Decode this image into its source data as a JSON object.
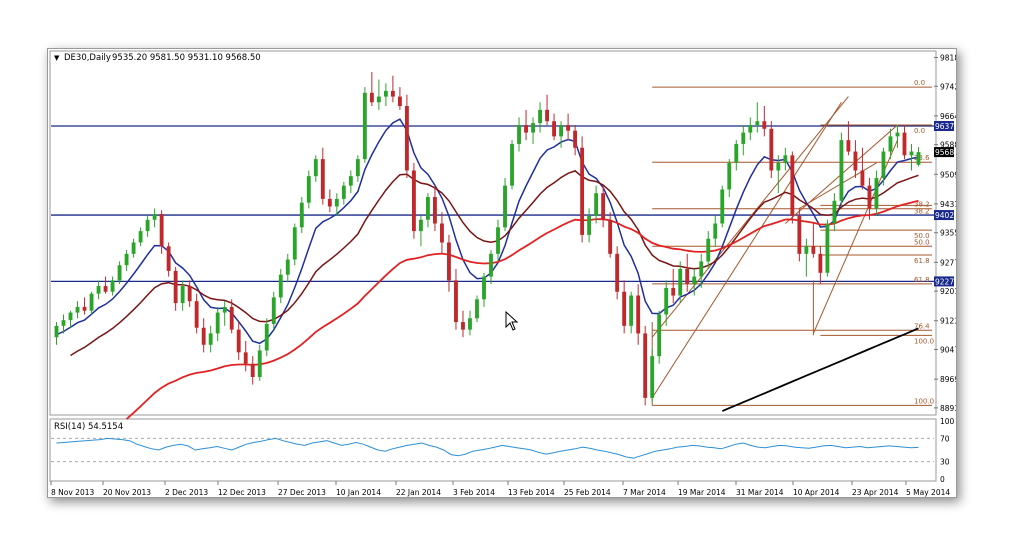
{
  "header": {
    "symbol": "DE30,Daily",
    "ohlc": "9535.20 9581.50 9531.10 9568.50"
  },
  "rsi_header": {
    "label": "RSI(14) 54.5154"
  },
  "colors": {
    "bull": "#2aa52a",
    "bear": "#c0282b",
    "hline": "#1a2a8c",
    "fib": "#a6572b",
    "ma_blue": "#1f2fa0",
    "ma_dark": "#7a1414",
    "ma_red": "#e22222",
    "ma_black": "#000000",
    "rsi": "#2d8fd8"
  },
  "price_labels": {
    "current": "9568.50",
    "hlines": [
      "9637.36",
      "9402.35",
      "9227.27"
    ]
  },
  "fib_labels": [
    "0.0",
    "0.0",
    "23.6",
    "38.2",
    "38.2",
    "50.0",
    "50.0",
    "61.8",
    "61.8",
    "76.4",
    "100.0",
    "100.0"
  ],
  "chart_data": {
    "type": "candlestick",
    "y_ticks": [
      "9818.10",
      "9742.20",
      "9664.00",
      "9588.10",
      "9509.90",
      "9431.70",
      "9355.80",
      "9277.60",
      "9201.70",
      "9123.50",
      "9047.60",
      "8969.40",
      "8893.50"
    ],
    "ylim": [
      8880,
      9830
    ],
    "x_ticks": [
      "8 Nov 2013",
      "20 Nov 2013",
      "2 Dec 2013",
      "12 Dec 2013",
      "27 Dec 2013",
      "10 Jan 2014",
      "22 Jan 2014",
      "3 Feb 2014",
      "13 Feb 2014",
      "25 Feb 2014",
      "7 Mar 2014",
      "19 Mar 2014",
      "31 Mar 2014",
      "10 Apr 2014",
      "23 Apr 2014",
      "5 May 2014"
    ],
    "horizontal_lines": [
      9637.36,
      9402.35,
      9227.27
    ],
    "last_close": 9568.5,
    "candles": [
      [
        9080,
        9120,
        9060,
        9110
      ],
      [
        9110,
        9140,
        9090,
        9125
      ],
      [
        9125,
        9150,
        9105,
        9145
      ],
      [
        9145,
        9175,
        9130,
        9160
      ],
      [
        9160,
        9185,
        9140,
        9150
      ],
      [
        9150,
        9200,
        9140,
        9195
      ],
      [
        9195,
        9230,
        9180,
        9215
      ],
      [
        9215,
        9240,
        9195,
        9200
      ],
      [
        9200,
        9240,
        9190,
        9230
      ],
      [
        9230,
        9280,
        9220,
        9270
      ],
      [
        9270,
        9310,
        9255,
        9300
      ],
      [
        9300,
        9340,
        9290,
        9330
      ],
      [
        9330,
        9370,
        9320,
        9360
      ],
      [
        9360,
        9400,
        9345,
        9390
      ],
      [
        9390,
        9420,
        9370,
        9405
      ],
      [
        9405,
        9415,
        9300,
        9320
      ],
      [
        9320,
        9330,
        9240,
        9255
      ],
      [
        9255,
        9265,
        9150,
        9170
      ],
      [
        9170,
        9230,
        9150,
        9215
      ],
      [
        9215,
        9230,
        9160,
        9175
      ],
      [
        9175,
        9195,
        9090,
        9105
      ],
      [
        9105,
        9130,
        9040,
        9060
      ],
      [
        9060,
        9110,
        9040,
        9090
      ],
      [
        9090,
        9160,
        9070,
        9145
      ],
      [
        9145,
        9175,
        9110,
        9160
      ],
      [
        9160,
        9180,
        9090,
        9100
      ],
      [
        9100,
        9120,
        9020,
        9040
      ],
      [
        9040,
        9070,
        8990,
        9010
      ],
      [
        9010,
        9030,
        8955,
        8975
      ],
      [
        8975,
        9060,
        8965,
        9045
      ],
      [
        9045,
        9130,
        9030,
        9115
      ],
      [
        9115,
        9200,
        9100,
        9185
      ],
      [
        9185,
        9260,
        9170,
        9245
      ],
      [
        9245,
        9300,
        9225,
        9285
      ],
      [
        9285,
        9380,
        9270,
        9370
      ],
      [
        9370,
        9450,
        9355,
        9435
      ],
      [
        9435,
        9520,
        9420,
        9505
      ],
      [
        9505,
        9560,
        9490,
        9550
      ],
      [
        9550,
        9580,
        9430,
        9445
      ],
      [
        9445,
        9470,
        9410,
        9425
      ],
      [
        9425,
        9460,
        9400,
        9445
      ],
      [
        9445,
        9490,
        9430,
        9480
      ],
      [
        9480,
        9520,
        9460,
        9505
      ],
      [
        9505,
        9560,
        9490,
        9550
      ],
      [
        9550,
        9740,
        9540,
        9725
      ],
      [
        9725,
        9780,
        9690,
        9700
      ],
      [
        9700,
        9760,
        9680,
        9715
      ],
      [
        9715,
        9750,
        9690,
        9730
      ],
      [
        9730,
        9770,
        9700,
        9715
      ],
      [
        9715,
        9740,
        9680,
        9690
      ],
      [
        9690,
        9720,
        9500,
        9520
      ],
      [
        9520,
        9540,
        9340,
        9360
      ],
      [
        9360,
        9400,
        9320,
        9390
      ],
      [
        9390,
        9460,
        9370,
        9450
      ],
      [
        9450,
        9480,
        9360,
        9380
      ],
      [
        9380,
        9410,
        9300,
        9330
      ],
      [
        9330,
        9350,
        9200,
        9230
      ],
      [
        9230,
        9260,
        9100,
        9120
      ],
      [
        9120,
        9150,
        9080,
        9100
      ],
      [
        9100,
        9150,
        9085,
        9130
      ],
      [
        9130,
        9190,
        9120,
        9180
      ],
      [
        9180,
        9250,
        9160,
        9240
      ],
      [
        9240,
        9310,
        9220,
        9300
      ],
      [
        9300,
        9390,
        9280,
        9370
      ],
      [
        9370,
        9500,
        9360,
        9480
      ],
      [
        9480,
        9600,
        9470,
        9590
      ],
      [
        9590,
        9660,
        9570,
        9640
      ],
      [
        9640,
        9680,
        9600,
        9620
      ],
      [
        9620,
        9660,
        9590,
        9645
      ],
      [
        9645,
        9700,
        9620,
        9680
      ],
      [
        9680,
        9720,
        9640,
        9650
      ],
      [
        9650,
        9670,
        9600,
        9610
      ],
      [
        9610,
        9650,
        9580,
        9640
      ],
      [
        9640,
        9670,
        9600,
        9625
      ],
      [
        9625,
        9640,
        9560,
        9580
      ],
      [
        9580,
        9610,
        9330,
        9350
      ],
      [
        9350,
        9420,
        9330,
        9400
      ],
      [
        9400,
        9480,
        9380,
        9460
      ],
      [
        9460,
        9480,
        9370,
        9390
      ],
      [
        9390,
        9410,
        9290,
        9300
      ],
      [
        9300,
        9320,
        9180,
        9200
      ],
      [
        9200,
        9230,
        9090,
        9110
      ],
      [
        9110,
        9200,
        9090,
        9190
      ],
      [
        9190,
        9220,
        9060,
        9090
      ],
      [
        9090,
        9110,
        8900,
        8920
      ],
      [
        8920,
        9050,
        8910,
        9030
      ],
      [
        9030,
        9150,
        9010,
        9140
      ],
      [
        9140,
        9230,
        9110,
        9210
      ],
      [
        9210,
        9260,
        9170,
        9190
      ],
      [
        9190,
        9280,
        9170,
        9260
      ],
      [
        9260,
        9300,
        9200,
        9220
      ],
      [
        9220,
        9260,
        9190,
        9240
      ],
      [
        9240,
        9300,
        9210,
        9280
      ],
      [
        9280,
        9360,
        9260,
        9340
      ],
      [
        9340,
        9400,
        9320,
        9380
      ],
      [
        9380,
        9480,
        9370,
        9470
      ],
      [
        9470,
        9550,
        9450,
        9540
      ],
      [
        9540,
        9600,
        9520,
        9590
      ],
      [
        9590,
        9640,
        9560,
        9620
      ],
      [
        9620,
        9660,
        9600,
        9640
      ],
      [
        9640,
        9700,
        9620,
        9650
      ],
      [
        9650,
        9690,
        9610,
        9630
      ],
      [
        9630,
        9650,
        9500,
        9520
      ],
      [
        9520,
        9560,
        9460,
        9540
      ],
      [
        9540,
        9580,
        9520,
        9560
      ],
      [
        9560,
        9570,
        9380,
        9400
      ],
      [
        9400,
        9420,
        9280,
        9300
      ],
      [
        9300,
        9340,
        9240,
        9320
      ],
      [
        9320,
        9380,
        9290,
        9300
      ],
      [
        9300,
        9320,
        9220,
        9250
      ],
      [
        9250,
        9390,
        9240,
        9380
      ],
      [
        9380,
        9460,
        9360,
        9440
      ],
      [
        9440,
        9620,
        9430,
        9600
      ],
      [
        9600,
        9650,
        9560,
        9570
      ],
      [
        9570,
        9600,
        9500,
        9520
      ],
      [
        9520,
        9580,
        9470,
        9480
      ],
      [
        9480,
        9500,
        9390,
        9420
      ],
      [
        9420,
        9520,
        9400,
        9500
      ],
      [
        9500,
        9580,
        9480,
        9570
      ],
      [
        9570,
        9630,
        9550,
        9610
      ],
      [
        9610,
        9640,
        9580,
        9620
      ],
      [
        9620,
        9640,
        9550,
        9560
      ],
      [
        9560,
        9590,
        9520,
        9570
      ],
      [
        9535.2,
        9581.5,
        9531.1,
        9568.5
      ]
    ],
    "fib_levels": {
      "retracement_1": {
        "levels": [
          "0.0",
          "23.6",
          "38.2",
          "50.0",
          "61.8",
          "76.4",
          "100.0"
        ]
      },
      "retracement_2": {
        "levels": [
          "0.0",
          "38.2",
          "50.0",
          "61.8",
          "100.0"
        ]
      }
    },
    "rsi": {
      "label": "RSI(14) 54.5154",
      "period": 14,
      "last": 54.5154,
      "y_ticks": [
        "100",
        "70",
        "30",
        "0"
      ],
      "levels": [
        70,
        30
      ],
      "values": [
        62,
        63,
        64,
        65,
        66,
        67,
        68,
        70,
        69,
        68,
        66,
        60,
        56,
        52,
        50,
        55,
        58,
        60,
        57,
        50,
        52,
        54,
        56,
        53,
        50,
        55,
        60,
        63,
        65,
        68,
        70,
        66,
        63,
        60,
        58,
        62,
        64,
        66,
        62,
        58,
        60,
        63,
        60,
        55,
        50,
        48,
        52,
        55,
        58,
        60,
        62,
        58,
        55,
        50,
        42,
        40,
        43,
        48,
        50,
        52,
        55,
        58,
        56,
        54,
        52,
        50,
        46,
        43,
        45,
        48,
        50,
        52,
        55,
        53,
        50,
        48,
        45,
        42,
        38,
        36,
        40,
        44,
        48,
        50,
        52,
        55,
        56,
        58,
        57,
        55,
        54,
        52,
        56,
        60,
        62,
        58,
        55,
        54,
        56,
        58,
        57,
        55,
        54,
        53,
        55,
        57,
        58,
        56,
        54,
        55,
        56,
        54,
        55,
        56,
        57,
        56,
        55,
        54,
        54.5154
      ]
    }
  }
}
